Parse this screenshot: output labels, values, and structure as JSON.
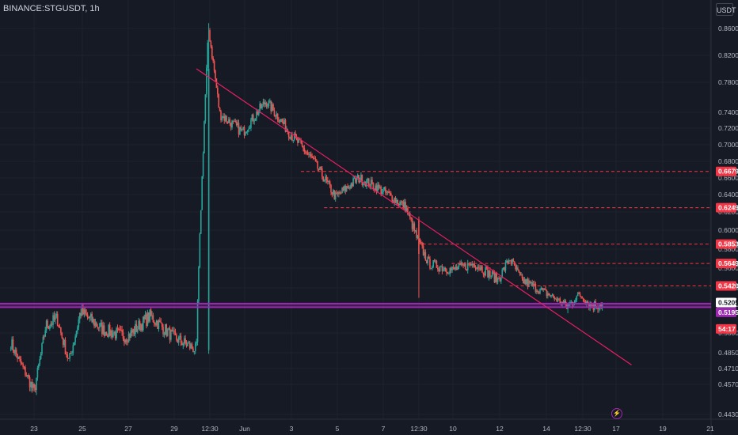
{
  "header": {
    "symbol": "BINANCE:STGUSDT, 1h",
    "quote_currency": "USDT"
  },
  "colors": {
    "background": "#161a25",
    "grid": "#1e222d",
    "up": "#26a69a",
    "down": "#ef5350",
    "trendline": "#e91e63",
    "level": "#f23645",
    "support": "#9c27b0",
    "axis_text": "#b2b5be"
  },
  "icons": {
    "power": "lightning-icon"
  },
  "chart_data": {
    "type": "candlestick",
    "price_ticks": [
      "0.8600",
      "0.8200",
      "0.7800",
      "0.7400",
      "0.7200",
      "0.7000",
      "0.6800",
      "0.6600",
      "0.6400",
      "0.6200",
      "0.6000",
      "0.5800",
      "0.5600",
      "0.5400",
      "0.5200",
      "0.5000",
      "0.4850",
      "0.4710",
      "0.4570",
      "0.4430"
    ],
    "time_ticks": [
      "23",
      "25",
      "27",
      "29",
      "12:30",
      "Jun",
      "3",
      "5",
      "7",
      "12:30",
      "10",
      "12",
      "14",
      "12:30",
      "17",
      "19",
      "21"
    ],
    "price_labels": [
      {
        "value": "0.6679",
        "price": 0.6679,
        "kind": "level"
      },
      {
        "value": "0.6249",
        "price": 0.6249,
        "kind": "level"
      },
      {
        "value": "0.5853",
        "price": 0.5853,
        "kind": "level"
      },
      {
        "value": "0.5649",
        "price": 0.5649,
        "kind": "level"
      },
      {
        "value": "0.5420",
        "price": 0.542,
        "kind": "level"
      },
      {
        "value": "0.5205",
        "price": 0.5205,
        "kind": "last"
      },
      {
        "value": "0.5195",
        "price": 0.5195,
        "kind": "support"
      },
      {
        "value": "54:17",
        "price": 0.5112,
        "kind": "timer"
      }
    ],
    "ylim": [
      0.43,
      0.87
    ],
    "support_band": [
      0.5181,
      0.5211
    ],
    "trendline": [
      {
        "date": "May 30",
        "price": 0.8
      },
      {
        "date": "Jun 17",
        "price": 0.495
      }
    ],
    "anchors": [
      [
        "May 22",
        0.493
      ],
      [
        "May 23",
        0.452
      ],
      [
        "May 23 12:00",
        0.505
      ],
      [
        "May 24",
        0.51
      ],
      [
        "May 24 12:00",
        0.478
      ],
      [
        "May 25",
        0.515
      ],
      [
        "May 26",
        0.502
      ],
      [
        "May 27",
        0.497
      ],
      [
        "May 28",
        0.512
      ],
      [
        "May 29",
        0.497
      ],
      [
        "May 30",
        0.487
      ],
      [
        "May 30 12:30",
        0.86
      ],
      [
        "May 31",
        0.738
      ],
      [
        "Jun 1",
        0.715
      ],
      [
        "Jun 2",
        0.755
      ],
      [
        "Jun 3",
        0.715
      ],
      [
        "Jun 4",
        0.682
      ],
      [
        "Jun 5",
        0.637
      ],
      [
        "Jun 6",
        0.66
      ],
      [
        "Jun 7",
        0.645
      ],
      [
        "Jun 8",
        0.626
      ],
      [
        "Jun 8 12:00",
        0.592
      ],
      [
        "Jun 9",
        0.565
      ],
      [
        "Jun 10",
        0.558
      ],
      [
        "Jun 11",
        0.565
      ],
      [
        "Jun 12",
        0.548
      ],
      [
        "Jun 12 12:00",
        0.57
      ],
      [
        "Jun 13",
        0.548
      ],
      [
        "Jun 14",
        0.535
      ],
      [
        "Jun 15",
        0.518
      ],
      [
        "Jun 15 12:00",
        0.532
      ],
      [
        "Jun 16",
        0.52
      ],
      [
        "Jun 16 12:00",
        0.521
      ]
    ]
  }
}
